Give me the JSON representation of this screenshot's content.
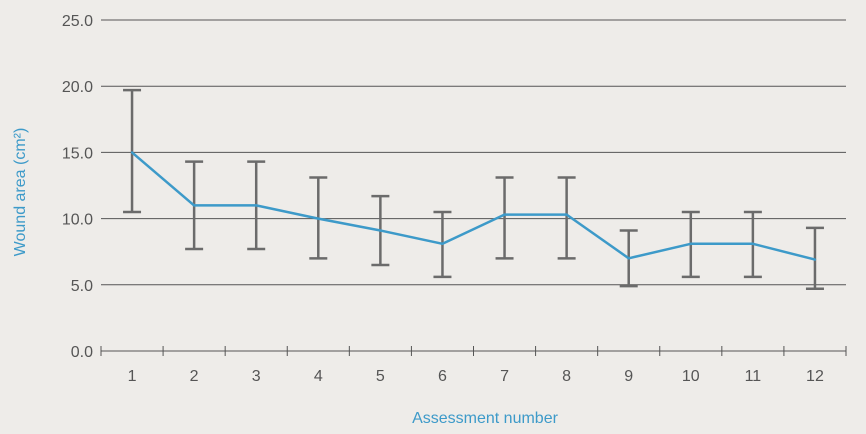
{
  "chart_data": {
    "type": "line",
    "xlabel": "Assessment number",
    "ylabel": "Wound area (cm²)",
    "ylim": [
      0,
      25
    ],
    "yticks": [
      "0.0",
      "5.0",
      "10.0",
      "15.0",
      "20.0",
      "25.0"
    ],
    "categories": [
      "1",
      "2",
      "3",
      "4",
      "5",
      "6",
      "7",
      "8",
      "9",
      "10",
      "11",
      "12"
    ],
    "series": [
      {
        "values": [
          15.0,
          11.0,
          11.0,
          10.0,
          9.1,
          8.1,
          10.3,
          10.3,
          7.0,
          8.1,
          8.1,
          6.9
        ],
        "error_low": [
          10.5,
          7.7,
          7.7,
          7.0,
          6.5,
          5.6,
          7.0,
          7.0,
          4.9,
          5.6,
          5.6,
          4.7
        ],
        "error_high": [
          19.7,
          14.3,
          14.3,
          13.1,
          11.7,
          10.5,
          13.1,
          13.1,
          9.1,
          10.5,
          10.5,
          9.3
        ]
      }
    ],
    "grid": true,
    "colors": {
      "line": "#3d9ac9",
      "error_bar": "#6b6b6b",
      "grid": "#555555",
      "axis_label": "#3d9ac9",
      "tick_label": "#555555",
      "background": "#eeece9"
    }
  }
}
